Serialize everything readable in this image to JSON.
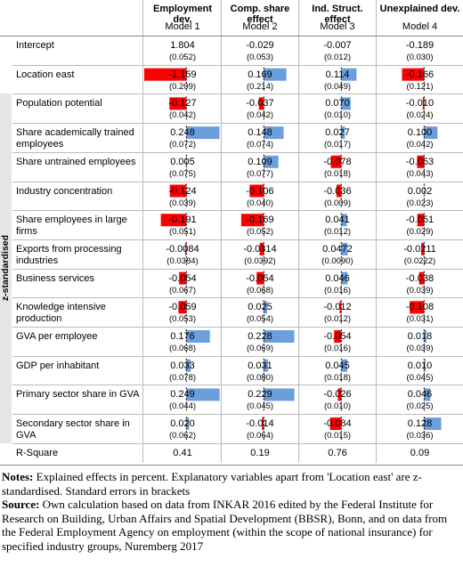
{
  "table": {
    "columns": [
      {
        "title": "Employment dev.",
        "model": "Model 1"
      },
      {
        "title": "Comp. share effect",
        "model": "Model 2"
      },
      {
        "title": "Ind. Struct. effect",
        "model": "Model 3"
      },
      {
        "title": "Unexplained dev.",
        "model": "Model 4"
      }
    ],
    "bar_colors": {
      "negative": "#ff0000",
      "positive": "#6b9fdc"
    },
    "intercept": {
      "label": "Intercept",
      "values": [
        1.804,
        -0.029,
        -0.007,
        -0.189
      ],
      "se": [
        "(0.052)",
        "(0.053)",
        "(0.012)",
        "(0.030)"
      ]
    },
    "location_east": {
      "label": "Location east",
      "values": [
        -1.159,
        0.169,
        0.114,
        -0.166
      ],
      "se": [
        "(0.209)",
        "(0.214)",
        "(0.049)",
        "(0.121)"
      ]
    },
    "z_group": {
      "label": "z-standardised",
      "rows": [
        {
          "label": "Population potential",
          "values": [
            -0.127,
            -0.037,
            0.07,
            -0.01
          ],
          "value_labels": [
            "-0.127",
            "-0.037",
            "0.070",
            "-0.010"
          ],
          "se": [
            "(0.042)",
            "(0.042)",
            "(0.010)",
            "(0.024)"
          ]
        },
        {
          "label": "Share academically trained employees",
          "values": [
            0.248,
            0.148,
            0.027,
            0.1
          ],
          "value_labels": [
            "0.248",
            "0.148",
            "0.027",
            "0.100"
          ],
          "se": [
            "(0.072)",
            "(0.074)",
            "(0.017)",
            "(0.042)"
          ]
        },
        {
          "label": "Share untrained employees",
          "values": [
            0.005,
            0.109,
            -0.078,
            -0.053
          ],
          "se": [
            "(0.075)",
            "(0.077)",
            "(0.018)",
            "(0.043)"
          ]
        },
        {
          "label": "Industry concentration",
          "values": [
            -0.124,
            -0.106,
            -0.036,
            0.002
          ],
          "se": [
            "(0.039)",
            "(0.040)",
            "(0.009)",
            "(0.023)"
          ]
        },
        {
          "label": "Share employees in large firms",
          "values": [
            -0.191,
            -0.169,
            0.041,
            -0.051
          ],
          "se": [
            "(0.051)",
            "(0.052)",
            "(0.012)",
            "(0.029)"
          ]
        },
        {
          "label": "Exports from processing industries",
          "values": [
            -0.0084,
            -0.0314,
            0.0472,
            -0.0211
          ],
          "se": [
            "(0.0384)",
            "(0.0392)",
            "(0.0090)",
            "(0.0222)"
          ]
        },
        {
          "label": "Business services",
          "values": [
            -0.054,
            -0.054,
            0.046,
            -0.038
          ],
          "se": [
            "(0.067)",
            "(0.068)",
            "(0.016)",
            "(0.039)"
          ]
        },
        {
          "label": "Knowledge intensive production",
          "values": [
            -0.059,
            0.025,
            -0.012,
            -0.108
          ],
          "se": [
            "(0.053)",
            "(0.054)",
            "(0.012)",
            "(0.031)"
          ]
        },
        {
          "label": "GVA per employee",
          "values": [
            0.176,
            0.228,
            -0.054,
            0.018
          ],
          "se": [
            "(0.068)",
            "(0.069)",
            "(0.016)",
            "(0.039)"
          ]
        },
        {
          "label": "GDP per inhabitant",
          "values": [
            0.033,
            0.031,
            0.045,
            0.01
          ],
          "value_labels": [
            "0.033",
            "0.031",
            "0.045",
            "0.010"
          ],
          "se": [
            "(0.078)",
            "(0.080)",
            "(0.018)",
            "(0.045)"
          ]
        },
        {
          "label": "Primary sector share in GVA",
          "values": [
            0.249,
            0.229,
            -0.026,
            0.046
          ],
          "se": [
            "(0.044)",
            "(0.045)",
            "(0.010)",
            "(0.025)"
          ]
        },
        {
          "label": "Secondary sector share in GVA",
          "values": [
            0.02,
            -0.014,
            -0.084,
            0.128
          ],
          "value_labels": [
            "0.020",
            "-0.014",
            "-0.084",
            "0.128"
          ],
          "se": [
            "(0.062)",
            "(0.064)",
            "(0.015)",
            "(0.036)"
          ]
        }
      ]
    },
    "r_square": {
      "label": "R-Square",
      "values": [
        0.41,
        0.19,
        0.76,
        0.09
      ]
    }
  },
  "notes": {
    "label": "Notes:",
    "text": "Explained effects in percent. Explanatory variables apart from 'Location east' are z-standardised. Standard errors in brackets"
  },
  "source": {
    "label": "Source:",
    "text": "Own calculation based on data from INKAR 2016 edited by the Federal Institute for Research on Building, Urban Affairs and Spatial Development (BBSR), Bonn, and on data from the Federal Employment Agency on employment (within the scope of national insurance) for specified industry groups, Nuremberg 2017"
  }
}
